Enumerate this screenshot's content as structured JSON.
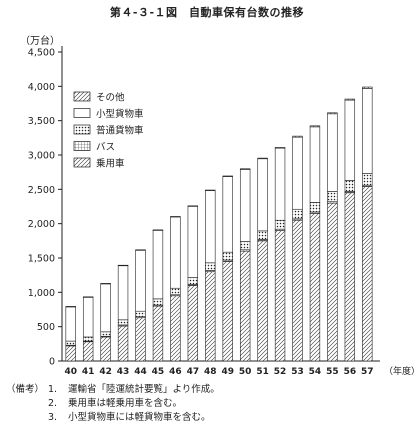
{
  "chart_data": {
    "type": "bar",
    "stacked": true,
    "title": "第４-３-１図　自動車保有台数の推移",
    "unit_label": "（万台）",
    "xlabel": "（年度）",
    "categories": [
      "40",
      "41",
      "42",
      "43",
      "44",
      "45",
      "46",
      "47",
      "48",
      "49",
      "50",
      "51",
      "52",
      "53",
      "54",
      "55",
      "56",
      "57"
    ],
    "y_ticks": [
      "0",
      "500",
      "1,000",
      "1,500",
      "2,000",
      "2,500",
      "3,000",
      "3,500",
      "4,000",
      "4,500"
    ],
    "ylim": [
      0,
      4500
    ],
    "grid": false,
    "legend_position": "top-left",
    "series": [
      {
        "name": "乗用車",
        "pattern": "hatch",
        "values": [
          220,
          280,
          350,
          510,
          630,
          800,
          950,
          1100,
          1300,
          1450,
          1600,
          1750,
          1900,
          2050,
          2150,
          2300,
          2450,
          2540
        ]
      },
      {
        "name": "バス",
        "pattern": "grid",
        "values": [
          10,
          10,
          10,
          15,
          15,
          15,
          15,
          15,
          20,
          20,
          20,
          20,
          20,
          20,
          20,
          20,
          20,
          20
        ]
      },
      {
        "name": "普通貨物車",
        "pattern": "dots",
        "values": [
          60,
          60,
          65,
          75,
          80,
          90,
          95,
          100,
          110,
          115,
          120,
          125,
          130,
          140,
          140,
          150,
          160,
          170
        ]
      },
      {
        "name": "小型貨物車",
        "pattern": "blank",
        "values": [
          500,
          580,
          700,
          790,
          890,
          1000,
          1040,
          1040,
          1050,
          1100,
          1050,
          1050,
          1050,
          1050,
          1100,
          1130,
          1170,
          1240
        ]
      },
      {
        "name": "その他",
        "pattern": "hatch",
        "values": [
          5,
          5,
          5,
          5,
          5,
          5,
          5,
          5,
          10,
          10,
          10,
          10,
          10,
          15,
          15,
          15,
          15,
          20
        ]
      }
    ]
  },
  "notes": {
    "lead": "（備考）",
    "items": [
      {
        "num": "1.",
        "text": "運輸省「陸運統計要覧」より作成。"
      },
      {
        "num": "2.",
        "text": "乗用車は軽乗用車を含む。"
      },
      {
        "num": "3.",
        "text": "小型貨物車には軽貨物車を含む。"
      }
    ]
  }
}
